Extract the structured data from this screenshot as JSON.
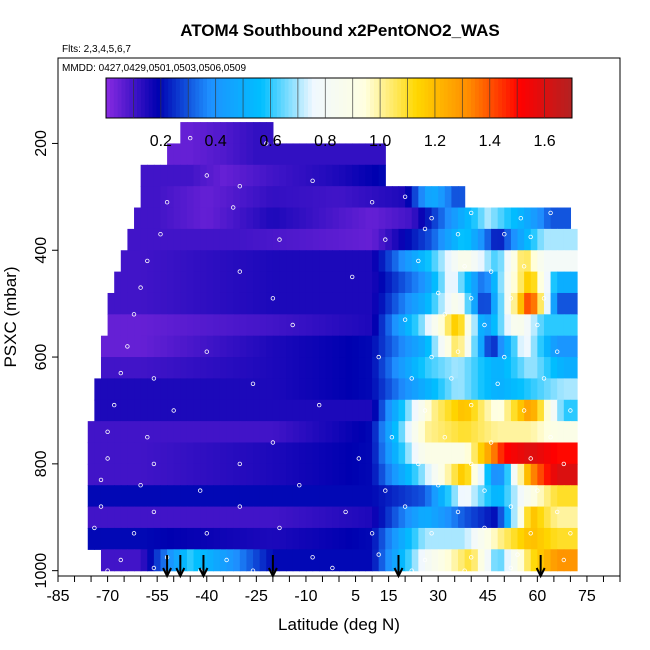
{
  "chart_data": {
    "type": "heatmap",
    "title": "ATOM4 Southbound x2PentONO2_WAS",
    "flights_note": "Flts: 2,3,4,5,6,7",
    "dates_note": "MMDD: 0427,0429,0501,0503,0506,0509",
    "xlabel": "Latitude (deg N)",
    "ylabel": "PSXC (mbar)",
    "xlim": [
      -85,
      85
    ],
    "ylim": [
      1010,
      40
    ],
    "x_ticks": [
      -85,
      -70,
      -55,
      -40,
      -25,
      -10,
      5,
      15,
      30,
      45,
      60,
      75
    ],
    "x_tick_labels": [
      "-85",
      "-70",
      "-55",
      "-40",
      "-25",
      "-10",
      "5",
      "15",
      "30",
      "45",
      "60",
      "75"
    ],
    "x_minor_step": 5,
    "y_ticks": [
      200,
      400,
      600,
      800,
      1000
    ],
    "y_tick_labels": [
      "200",
      "400",
      "600",
      "800",
      "1000"
    ],
    "colorbar": {
      "range": [
        0,
        1.7
      ],
      "ticks": [
        0.2,
        0.4,
        0.6,
        0.8,
        1.0,
        1.2,
        1.4,
        1.6
      ],
      "tick_labels": [
        "0.2",
        "0.4",
        "0.6",
        "0.8",
        "1.0",
        "1.2",
        "1.4",
        "1.6"
      ],
      "colors": [
        "#8a2be2",
        "#0000b0",
        "#1e90ff",
        "#00bfff",
        "#f0f8ff",
        "#ffffe0",
        "#ffd700",
        "#ff8c00",
        "#ff0000",
        "#b22222"
      ]
    },
    "pressure_bins": [
      180,
      220,
      260,
      300,
      340,
      380,
      420,
      460,
      500,
      540,
      580,
      620,
      660,
      700,
      740,
      780,
      820,
      860,
      900,
      940,
      980
    ],
    "lat_extent_per_bin": [
      [
        -48,
        -20
      ],
      [
        -52,
        14
      ],
      [
        -60,
        14
      ],
      [
        -60,
        38
      ],
      [
        -62,
        70
      ],
      [
        -64,
        72
      ],
      [
        -66,
        72
      ],
      [
        -68,
        72
      ],
      [
        -70,
        72
      ],
      [
        -70,
        72
      ],
      [
        -72,
        72
      ],
      [
        -72,
        72
      ],
      [
        -74,
        72
      ],
      [
        -74,
        72
      ],
      [
        -76,
        72
      ],
      [
        -76,
        72
      ],
      [
        -76,
        72
      ],
      [
        -76,
        72
      ],
      [
        -76,
        72
      ],
      [
        -76,
        72
      ],
      [
        -72,
        72
      ]
    ],
    "values": [
      [
        -45,
        200,
        0.05
      ],
      [
        -35,
        200,
        0.08
      ],
      [
        -25,
        200,
        0.12
      ],
      [
        -45,
        240,
        0.1
      ],
      [
        -35,
        240,
        0.05
      ],
      [
        -20,
        240,
        0.1
      ],
      [
        0,
        240,
        0.15
      ],
      [
        14,
        240,
        0.2
      ],
      [
        -55,
        280,
        0.1
      ],
      [
        -40,
        280,
        0.05
      ],
      [
        -20,
        280,
        0.12
      ],
      [
        0,
        280,
        0.1
      ],
      [
        20,
        280,
        0.15
      ],
      [
        28,
        280,
        0.5
      ],
      [
        35,
        280,
        0.3
      ],
      [
        -55,
        320,
        0.1
      ],
      [
        -40,
        320,
        0.05
      ],
      [
        -20,
        320,
        0.15
      ],
      [
        10,
        320,
        0.05
      ],
      [
        22,
        320,
        0.1
      ],
      [
        34,
        320,
        0.4
      ],
      [
        45,
        320,
        0.7
      ],
      [
        56,
        320,
        0.5
      ],
      [
        64,
        320,
        0.3
      ],
      [
        -58,
        360,
        0.1
      ],
      [
        -30,
        360,
        0.1
      ],
      [
        10,
        360,
        0.05
      ],
      [
        28,
        360,
        0.3
      ],
      [
        38,
        360,
        0.6
      ],
      [
        48,
        360,
        0.2
      ],
      [
        56,
        360,
        0.5
      ],
      [
        62,
        360,
        0.7
      ],
      [
        -60,
        400,
        0.1
      ],
      [
        -20,
        400,
        0.15
      ],
      [
        10,
        400,
        0.15
      ],
      [
        28,
        400,
        0.6
      ],
      [
        38,
        400,
        0.9
      ],
      [
        48,
        400,
        0.6
      ],
      [
        56,
        400,
        1.1
      ],
      [
        62,
        400,
        0.8
      ],
      [
        -60,
        440,
        0.1
      ],
      [
        -20,
        440,
        0.15
      ],
      [
        10,
        440,
        0.15
      ],
      [
        26,
        440,
        0.4
      ],
      [
        34,
        440,
        0.8
      ],
      [
        44,
        440,
        0.3
      ],
      [
        52,
        440,
        0.9
      ],
      [
        58,
        440,
        1.2
      ],
      [
        66,
        440,
        0.5
      ],
      [
        -60,
        480,
        0.1
      ],
      [
        -20,
        480,
        0.15
      ],
      [
        10,
        480,
        0.15
      ],
      [
        26,
        480,
        0.5
      ],
      [
        36,
        480,
        0.9
      ],
      [
        44,
        480,
        0.2
      ],
      [
        54,
        480,
        1.1
      ],
      [
        58,
        480,
        1.5
      ],
      [
        66,
        480,
        0.3
      ],
      [
        -60,
        520,
        0.05
      ],
      [
        -20,
        520,
        0.1
      ],
      [
        10,
        520,
        0.15
      ],
      [
        26,
        520,
        0.7
      ],
      [
        36,
        520,
        1.2
      ],
      [
        44,
        520,
        0.4
      ],
      [
        54,
        520,
        0.9
      ],
      [
        62,
        520,
        0.6
      ],
      [
        -60,
        560,
        0.05
      ],
      [
        -20,
        560,
        0.15
      ],
      [
        10,
        560,
        0.2
      ],
      [
        26,
        560,
        0.5
      ],
      [
        36,
        560,
        1.1
      ],
      [
        46,
        560,
        0.2
      ],
      [
        56,
        560,
        0.8
      ],
      [
        66,
        560,
        0.4
      ],
      [
        -60,
        600,
        0.1
      ],
      [
        -20,
        600,
        0.15
      ],
      [
        10,
        600,
        0.2
      ],
      [
        26,
        600,
        0.6
      ],
      [
        36,
        600,
        0.7
      ],
      [
        48,
        600,
        0.5
      ],
      [
        58,
        600,
        0.7
      ],
      [
        68,
        600,
        0.5
      ],
      [
        -60,
        640,
        0.15
      ],
      [
        -20,
        640,
        0.15
      ],
      [
        10,
        640,
        0.2
      ],
      [
        26,
        640,
        0.5
      ],
      [
        36,
        640,
        0.7
      ],
      [
        48,
        640,
        0.5
      ],
      [
        58,
        640,
        0.6
      ],
      [
        68,
        640,
        0.7
      ],
      [
        -60,
        680,
        0.15
      ],
      [
        -20,
        680,
        0.15
      ],
      [
        10,
        680,
        0.15
      ],
      [
        28,
        680,
        1.0
      ],
      [
        38,
        680,
        1.2
      ],
      [
        48,
        680,
        0.9
      ],
      [
        58,
        680,
        1.3
      ],
      [
        68,
        680,
        0.6
      ],
      [
        -60,
        720,
        0.1
      ],
      [
        -20,
        720,
        0.1
      ],
      [
        10,
        720,
        0.2
      ],
      [
        26,
        720,
        1.0
      ],
      [
        38,
        720,
        1.1
      ],
      [
        48,
        720,
        1.0
      ],
      [
        58,
        720,
        1.0
      ],
      [
        66,
        720,
        0.9
      ],
      [
        -60,
        760,
        0.1
      ],
      [
        -20,
        760,
        0.15
      ],
      [
        10,
        760,
        0.2
      ],
      [
        26,
        760,
        0.9
      ],
      [
        38,
        760,
        0.9
      ],
      [
        50,
        760,
        1.5
      ],
      [
        58,
        760,
        1.6
      ],
      [
        66,
        760,
        1.5
      ],
      [
        -60,
        800,
        0.1
      ],
      [
        -20,
        800,
        0.15
      ],
      [
        10,
        800,
        0.2
      ],
      [
        26,
        800,
        0.7
      ],
      [
        38,
        800,
        1.2
      ],
      [
        48,
        800,
        0.3
      ],
      [
        58,
        800,
        1.3
      ],
      [
        66,
        800,
        1.6
      ],
      [
        -60,
        840,
        0.2
      ],
      [
        -20,
        840,
        0.2
      ],
      [
        10,
        840,
        0.2
      ],
      [
        26,
        840,
        0.3
      ],
      [
        38,
        840,
        0.8
      ],
      [
        48,
        840,
        0.5
      ],
      [
        58,
        840,
        0.9
      ],
      [
        66,
        840,
        1.1
      ],
      [
        -60,
        880,
        0.1
      ],
      [
        -20,
        880,
        0.1
      ],
      [
        10,
        880,
        0.15
      ],
      [
        26,
        880,
        0.5
      ],
      [
        38,
        880,
        0.3
      ],
      [
        48,
        880,
        0.2
      ],
      [
        58,
        880,
        1.2
      ],
      [
        66,
        880,
        1.0
      ],
      [
        -60,
        920,
        0.2
      ],
      [
        -20,
        920,
        0.15
      ],
      [
        10,
        920,
        0.2
      ],
      [
        26,
        920,
        0.7
      ],
      [
        38,
        920,
        0.7
      ],
      [
        48,
        920,
        1.0
      ],
      [
        58,
        920,
        1.2
      ],
      [
        66,
        920,
        1.1
      ],
      [
        -60,
        960,
        0.1
      ],
      [
        -45,
        960,
        0.6
      ],
      [
        -20,
        960,
        0.2
      ],
      [
        10,
        960,
        0.2
      ],
      [
        26,
        960,
        0.8
      ],
      [
        40,
        960,
        1.1
      ],
      [
        48,
        960,
        0.6
      ],
      [
        58,
        960,
        1.1
      ],
      [
        66,
        960,
        1.3
      ],
      [
        -60,
        1000,
        0.1
      ],
      [
        -45,
        1000,
        0.2
      ],
      [
        -20,
        1000,
        0.2
      ],
      [
        10,
        1000,
        0.3
      ],
      [
        26,
        1000,
        0.9
      ],
      [
        38,
        1000,
        1.2
      ],
      [
        50,
        1000,
        1.0
      ],
      [
        60,
        1000,
        1.1
      ],
      [
        66,
        1000,
        1.3
      ]
    ],
    "sample_points": [
      [
        -45,
        190
      ],
      [
        -22,
        200
      ],
      [
        -40,
        260
      ],
      [
        -30,
        280
      ],
      [
        -8,
        270
      ],
      [
        18,
        270
      ],
      [
        42,
        275
      ],
      [
        46,
        275
      ],
      [
        52,
        282
      ],
      [
        60,
        300
      ],
      [
        70,
        300
      ],
      [
        -52,
        310
      ],
      [
        -32,
        320
      ],
      [
        10,
        310
      ],
      [
        20,
        300
      ],
      [
        28,
        340
      ],
      [
        40,
        330
      ],
      [
        55,
        340
      ],
      [
        64,
        330
      ],
      [
        -54,
        370
      ],
      [
        -18,
        380
      ],
      [
        14,
        380
      ],
      [
        26,
        360
      ],
      [
        36,
        370
      ],
      [
        50,
        370
      ],
      [
        58,
        375
      ],
      [
        -58,
        420
      ],
      [
        -30,
        440
      ],
      [
        4,
        450
      ],
      [
        24,
        420
      ],
      [
        38,
        430
      ],
      [
        46,
        440
      ],
      [
        56,
        430
      ],
      [
        -60,
        470
      ],
      [
        -20,
        490
      ],
      [
        30,
        480
      ],
      [
        40,
        490
      ],
      [
        52,
        490
      ],
      [
        62,
        490
      ],
      [
        -62,
        520
      ],
      [
        -14,
        540
      ],
      [
        20,
        530
      ],
      [
        32,
        520
      ],
      [
        44,
        540
      ],
      [
        60,
        540
      ],
      [
        -64,
        580
      ],
      [
        -40,
        590
      ],
      [
        12,
        600
      ],
      [
        28,
        600
      ],
      [
        36,
        590
      ],
      [
        50,
        600
      ],
      [
        66,
        590
      ],
      [
        -66,
        630
      ],
      [
        -56,
        640
      ],
      [
        -26,
        650
      ],
      [
        22,
        640
      ],
      [
        34,
        640
      ],
      [
        48,
        650
      ],
      [
        62,
        640
      ],
      [
        -68,
        690
      ],
      [
        -50,
        700
      ],
      [
        -6,
        690
      ],
      [
        26,
        700
      ],
      [
        40,
        690
      ],
      [
        56,
        700
      ],
      [
        70,
        700
      ],
      [
        -70,
        740
      ],
      [
        -58,
        750
      ],
      [
        -20,
        760
      ],
      [
        16,
        750
      ],
      [
        32,
        750
      ],
      [
        46,
        760
      ],
      [
        64,
        750
      ],
      [
        -70,
        790
      ],
      [
        -56,
        800
      ],
      [
        -30,
        800
      ],
      [
        6,
        790
      ],
      [
        24,
        800
      ],
      [
        40,
        800
      ],
      [
        58,
        790
      ],
      [
        68,
        800
      ],
      [
        -72,
        830
      ],
      [
        -60,
        840
      ],
      [
        -42,
        850
      ],
      [
        -12,
        840
      ],
      [
        14,
        850
      ],
      [
        30,
        840
      ],
      [
        44,
        850
      ],
      [
        60,
        850
      ],
      [
        -72,
        880
      ],
      [
        -56,
        890
      ],
      [
        -30,
        880
      ],
      [
        2,
        890
      ],
      [
        20,
        880
      ],
      [
        36,
        890
      ],
      [
        52,
        880
      ],
      [
        66,
        890
      ],
      [
        -74,
        920
      ],
      [
        -62,
        930
      ],
      [
        -40,
        930
      ],
      [
        -18,
        920
      ],
      [
        10,
        930
      ],
      [
        28,
        930
      ],
      [
        44,
        920
      ],
      [
        58,
        930
      ],
      [
        70,
        930
      ],
      [
        -74,
        970
      ],
      [
        -66,
        980
      ],
      [
        -52,
        975
      ],
      [
        -34,
        980
      ],
      [
        -8,
        975
      ],
      [
        12,
        970
      ],
      [
        26,
        980
      ],
      [
        40,
        975
      ],
      [
        54,
        970
      ],
      [
        68,
        980
      ],
      [
        -70,
        1000
      ],
      [
        -56,
        995
      ],
      [
        -42,
        1000
      ],
      [
        -26,
        1000
      ],
      [
        -2,
        995
      ],
      [
        22,
        1000
      ],
      [
        38,
        1000
      ],
      [
        52,
        995
      ]
    ],
    "arrow_latitudes": [
      -52,
      -48,
      -41,
      -20,
      18,
      61
    ],
    "grid": false,
    "legend": "colorbar top"
  }
}
